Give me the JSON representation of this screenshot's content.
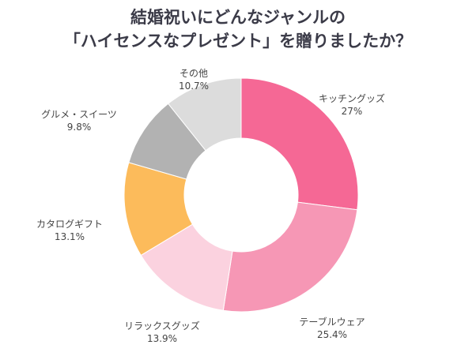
{
  "chart_data": {
    "type": "pie",
    "donut": true,
    "title": [
      "結婚祝いにどんなジャンルの",
      "「ハイセンスなプレゼント」を贈りましたか？"
    ],
    "unit": "%",
    "slices": [
      {
        "label": "キッチングッズ",
        "value": 27,
        "display": "27%",
        "color": "#F56895"
      },
      {
        "label": "テーブルウェア",
        "value": 25.4,
        "display": "25.4%",
        "color": "#F697B5"
      },
      {
        "label": "リラックスグッズ",
        "value": 13.9,
        "display": "13.9%",
        "color": "#FBD2DF"
      },
      {
        "label": "カタログギフト",
        "value": 13.1,
        "display": "13.1%",
        "color": "#FCBB5B"
      },
      {
        "label": "グルメ・スイーツ",
        "value": 9.8,
        "display": "9.8%",
        "color": "#B2B2B2"
      },
      {
        "label": "その他",
        "value": 10.7,
        "display": "10.7%",
        "color": "#DCDCDC"
      }
    ]
  }
}
